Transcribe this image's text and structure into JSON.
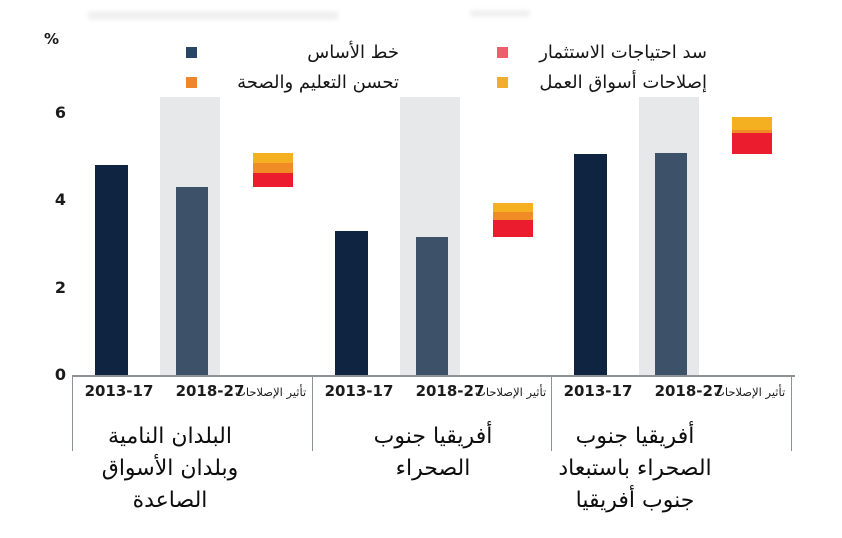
{
  "legend": {
    "baseline": {
      "label": "خط الأساس",
      "color": "#274764"
    },
    "investment": {
      "label": "سد احتياجات الاستثمار",
      "color": "#ed5f6a"
    },
    "education_health": {
      "label": "تحسن التعليم والصحة",
      "color": "#f0862c"
    },
    "labor_market": {
      "label": "إصلاحات أسواق العمل",
      "color": "#efae2e"
    }
  },
  "chart_data": {
    "type": "bar",
    "title": "",
    "ylabel": "%",
    "yticks": [
      0,
      2,
      4,
      6
    ],
    "ylim": [
      0,
      6.4
    ],
    "grid": false,
    "legend_position": "top",
    "series_colors": {
      "baseline_actual": "#0e2441",
      "baseline_projection": "#3d5169",
      "reform_highlight_column": "#e7e8e9",
      "investment": "#ea1c2d",
      "education_health": "#f08b25",
      "labor_market": "#f5b021"
    },
    "period_labels": [
      "2013-17",
      "2018-27",
      "تأثير الإصلاحات"
    ],
    "highlight_column_top": 6.36,
    "groups": [
      {
        "name": "البلدان النامية وبلدان الأسواق الصاعدة",
        "name_lines": [
          "البلدان النامية",
          "وبلدان الأسواق",
          "الصاعدة"
        ],
        "baseline_2013_17": 4.8,
        "baseline_2018_27": 4.3,
        "reform_stack": {
          "start": 4.3,
          "investment_top": 4.62,
          "education_health_top": 4.85,
          "labor_market_top": 5.08
        }
      },
      {
        "name": "أفريقيا جنوب الصحراء",
        "name_lines": [
          "أفريقيا جنوب",
          "الصحراء"
        ],
        "baseline_2013_17": 3.3,
        "baseline_2018_27": 3.15,
        "reform_stack": {
          "start": 3.15,
          "investment_top": 3.55,
          "education_health_top": 3.73,
          "labor_market_top": 3.95
        }
      },
      {
        "name": "أفريقيا جنوب الصحراء باستبعاد جنوب أفريقيا",
        "name_lines": [
          "أفريقيا جنوب",
          "الصحراء باستبعاد",
          "جنوب أفريقيا"
        ],
        "baseline_2013_17": 5.05,
        "baseline_2018_27": 5.08,
        "reform_stack": {
          "start": 5.05,
          "investment_top": 5.55,
          "education_health_top": 5.62,
          "labor_market_top": 5.9
        }
      }
    ]
  }
}
